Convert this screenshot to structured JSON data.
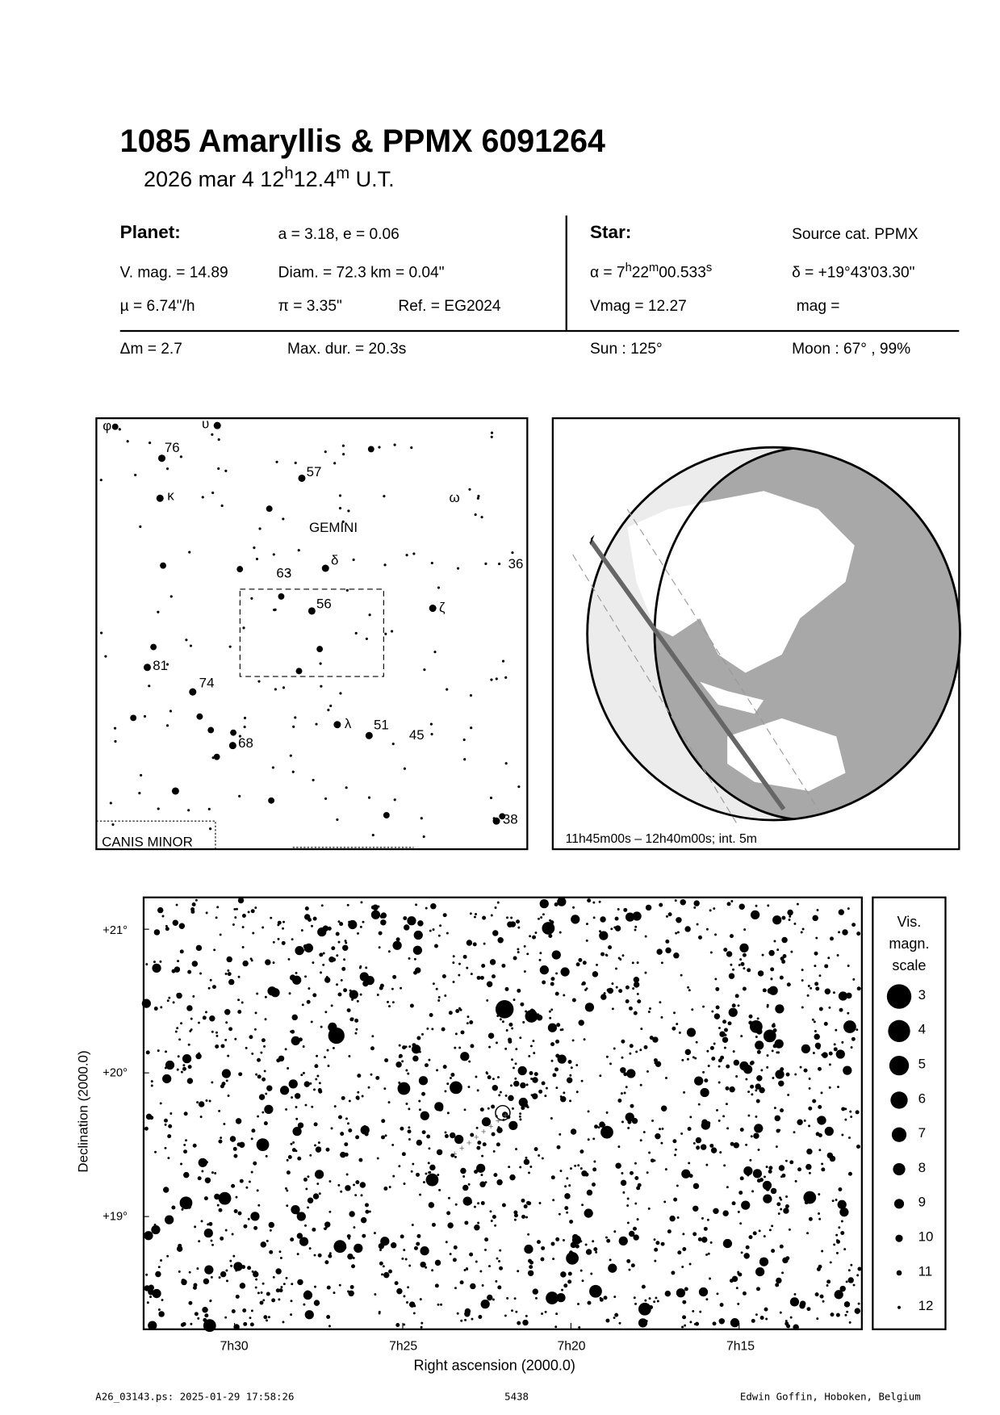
{
  "title": "1085 Amaryllis  &  PPMX 6091264",
  "date": {
    "text": "2026 mar  4  12",
    "h": "h",
    "min": "12.4",
    "m": "m",
    "ut": " U.T."
  },
  "planet": {
    "heading": "Planet:",
    "orbit": "a = 3.18, e = 0.06",
    "vmag": "V. mag. = 14.89",
    "diam": "Diam. = 72.3 km = 0.04\"",
    "mu": "µ =  6.74\"/h",
    "pi": "π =  3.35\"",
    "ref": "Ref. = EG2024"
  },
  "star": {
    "heading": "Star:",
    "source": "Source cat.  PPMX",
    "alpha_prefix": "α =  7",
    "alpha_h": "h",
    "alpha_min": "22",
    "alpha_m": "m",
    "alpha_sec": "00.533",
    "alpha_s": "s",
    "delta": "δ = +19°43'03.30\"",
    "vmag": "Vmag = 12.27",
    "mag": "mag ="
  },
  "summary": {
    "dm": "Δm = 2.7",
    "maxdur": "Max. dur. = 20.3s",
    "sun": "Sun : 125°",
    "moon": "Moon :  67° , 99%"
  },
  "finder": {
    "labels": [
      {
        "t": "φ",
        "x": 113,
        "y": 476
      },
      {
        "t": "υ",
        "x": 222,
        "y": 474
      },
      {
        "t": "76",
        "x": 181,
        "y": 500
      },
      {
        "t": "57",
        "x": 337,
        "y": 527
      },
      {
        "t": "κ",
        "x": 184,
        "y": 553
      },
      {
        "t": "ω",
        "x": 494,
        "y": 555
      },
      {
        "t": "GEMINI",
        "x": 340,
        "y": 588
      },
      {
        "t": "δ",
        "x": 364,
        "y": 624
      },
      {
        "t": "63",
        "x": 304,
        "y": 638
      },
      {
        "t": "36",
        "x": 559,
        "y": 628
      },
      {
        "t": "56",
        "x": 348,
        "y": 672
      },
      {
        "t": "ζ",
        "x": 483,
        "y": 676
      },
      {
        "t": "81",
        "x": 168,
        "y": 740
      },
      {
        "t": "74",
        "x": 219,
        "y": 759
      },
      {
        "t": "λ",
        "x": 379,
        "y": 804
      },
      {
        "t": "51",
        "x": 411,
        "y": 805
      },
      {
        "t": "45",
        "x": 450,
        "y": 816
      },
      {
        "t": "68",
        "x": 262,
        "y": 825
      },
      {
        "t": "38",
        "x": 553,
        "y": 909
      },
      {
        "t": "CANIS MINOR",
        "x": 112,
        "y": 934
      }
    ]
  },
  "globe": {
    "caption": "11h45m00s – 12h40m00s; int.  5m"
  },
  "chart": {
    "ylabel": "Declination (2000.0)",
    "xlabel": "Right ascension (2000.0)",
    "yticks": [
      "+21°",
      "+20°",
      "+19°"
    ],
    "xticks": [
      "7h30",
      "7h25",
      "7h20",
      "7h15"
    ],
    "legend_title": [
      "Vis.",
      "magn.",
      "scale"
    ],
    "legend_mags": [
      "3",
      "4",
      "5",
      "6",
      "7",
      "8",
      "9",
      "10",
      "11",
      "12"
    ]
  },
  "footer": {
    "left": "A26_03143.ps: 2025-01-29 17:58:26",
    "center": "5438",
    "right": "Edwin Goffin, Hoboken, Belgium"
  }
}
